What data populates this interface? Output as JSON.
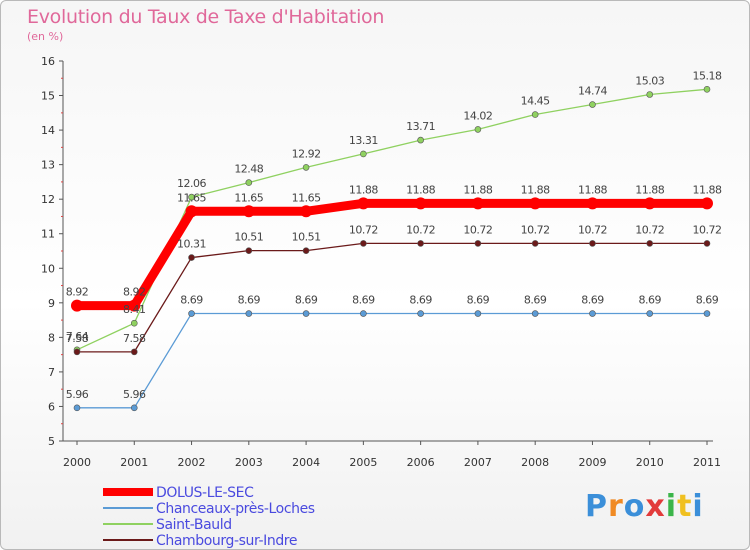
{
  "header": {
    "title": "Evolution du Taux de Taxe d'Habitation",
    "unit": "(en %)"
  },
  "logo": {
    "text": "Proxiti",
    "colors": [
      "#3b8fd9",
      "#f08a24",
      "#3b8fd9",
      "#e23b3b",
      "#3bb54a",
      "#f0c020",
      "#3b8fd9"
    ]
  },
  "chart_data": {
    "type": "line",
    "x": [
      "2000",
      "2001",
      "2002",
      "2003",
      "2004",
      "2005",
      "2006",
      "2007",
      "2008",
      "2009",
      "2010",
      "2011"
    ],
    "ylim": [
      5,
      16
    ],
    "yticks": [
      5,
      6,
      7,
      8,
      9,
      10,
      11,
      12,
      13,
      14,
      15,
      16
    ],
    "grid": false,
    "legend_position": "bottom-left",
    "series": [
      {
        "name": "DOLUS-LE-SEC",
        "color": "#ff0000",
        "width": 9,
        "values": [
          8.92,
          8.92,
          11.65,
          11.65,
          11.65,
          11.88,
          11.88,
          11.88,
          11.88,
          11.88,
          11.88,
          11.88
        ],
        "labels": [
          "8.92",
          "8.92",
          "11.65",
          "11.65",
          "11.65",
          "11.88",
          "11.88",
          "11.88",
          "11.88",
          "11.88",
          "11.88",
          "11.88"
        ]
      },
      {
        "name": "Chanceaux-près-Loches",
        "color": "#5b9bd5",
        "width": 1.3,
        "values": [
          5.96,
          5.96,
          8.69,
          8.69,
          8.69,
          8.69,
          8.69,
          8.69,
          8.69,
          8.69,
          8.69,
          8.69
        ],
        "labels": [
          "5.96",
          "5.96",
          "8.69",
          "8.69",
          "8.69",
          "8.69",
          "8.69",
          "8.69",
          "8.69",
          "8.69",
          "8.69",
          "8.69"
        ]
      },
      {
        "name": "Saint-Bauld",
        "color": "#8fd160",
        "width": 1.3,
        "values": [
          7.64,
          8.41,
          12.06,
          12.48,
          12.92,
          13.31,
          13.71,
          14.02,
          14.45,
          14.74,
          15.03,
          15.18
        ],
        "labels": [
          "7.64",
          "8.41",
          "12.06",
          "12.48",
          "12.92",
          "13.31",
          "13.71",
          "14.02",
          "14.45",
          "14.74",
          "15.03",
          "15.18"
        ]
      },
      {
        "name": "Chambourg-sur-Indre",
        "color": "#6b1a1a",
        "width": 1.3,
        "values": [
          7.58,
          7.58,
          10.31,
          10.51,
          10.51,
          10.72,
          10.72,
          10.72,
          10.72,
          10.72,
          10.72,
          10.72
        ],
        "labels": [
          "7.58",
          "7.58",
          "10.31",
          "10.51",
          "10.51",
          "10.72",
          "10.72",
          "10.72",
          "10.72",
          "10.72",
          "10.72",
          "10.72"
        ]
      }
    ]
  }
}
